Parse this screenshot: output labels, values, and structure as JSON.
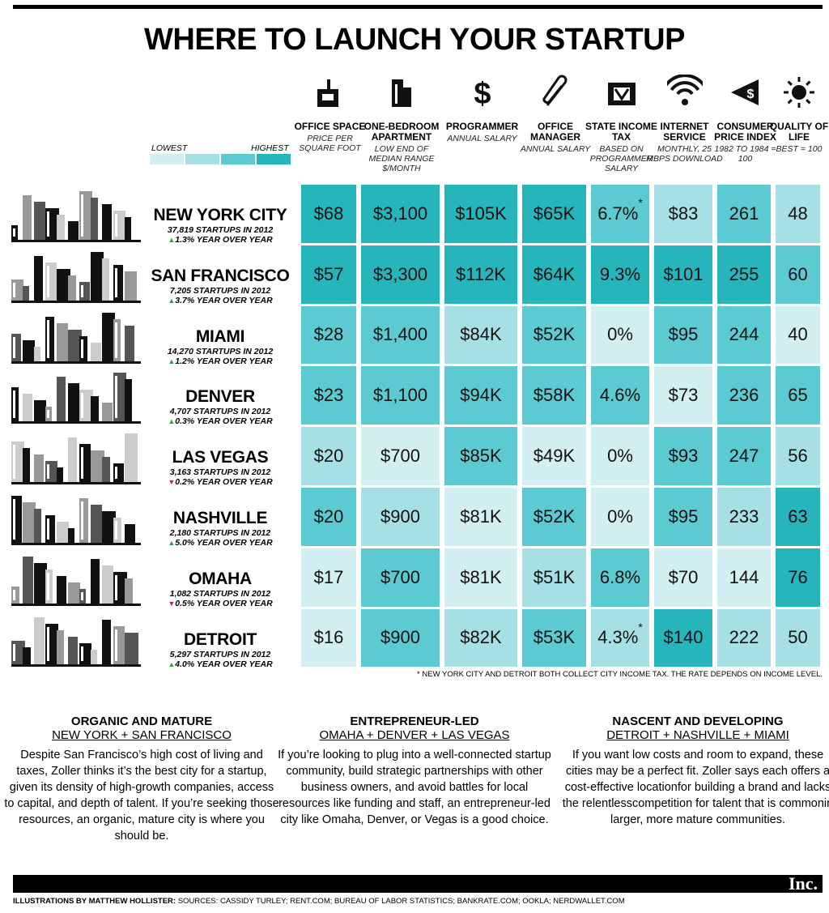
{
  "title": "WHERE TO LAUNCH YOUR STARTUP",
  "legend": {
    "low": "LOWEST",
    "high": "HIGHEST",
    "colors": [
      "#d4eff1",
      "#a6e0e4",
      "#5ccbd1",
      "#27b5bc"
    ]
  },
  "columns": [
    {
      "name": "OFFICE SPACE",
      "sub": "PRICE PER SQUARE FOOT"
    },
    {
      "name": "ONE-BEDROOM APARTMENT",
      "sub": "LOW END OF MEDIAN RANGE $/MONTH"
    },
    {
      "name": "PROGRAMMER",
      "sub": "ANNUAL SALARY"
    },
    {
      "name": "OFFICE MANAGER",
      "sub": "ANNUAL SALARY"
    },
    {
      "name": "STATE INCOME TAX",
      "sub": "BASED ON PROGRAMMER SALARY"
    },
    {
      "name": "INTERNET SERVICE",
      "sub": "MONTHLY, 25 MBPS DOWNLOAD"
    },
    {
      "name": "CONSUMER PRICE INDEX",
      "sub": "1982 TO 1984 = 100"
    },
    {
      "name": "QUALITY OF LIFE",
      "sub": "BEST = 100"
    }
  ],
  "rows": [
    {
      "city": "NEW YORK CITY",
      "startups": "37,819 STARTUPS IN 2012",
      "trend": "up",
      "change": "1.3% YEAR OVER YEAR",
      "cells": [
        {
          "text": "$68",
          "color": "#27b5bc"
        },
        {
          "text": "$3,100",
          "color": "#27b5bc"
        },
        {
          "text": "$105K",
          "color": "#27b5bc"
        },
        {
          "text": "$65K",
          "color": "#27b5bc"
        },
        {
          "text": "6.7%",
          "mark": "*",
          "color": "#5ccbd1"
        },
        {
          "text": "$83",
          "color": "#a6e0e4"
        },
        {
          "text": "261",
          "color": "#5ccbd1"
        },
        {
          "text": "48",
          "color": "#a6e0e4"
        }
      ]
    },
    {
      "city": "SAN FRANCISCO",
      "startups": "7,205 STARTUPS IN 2012",
      "trend": "up",
      "change": "3.7% YEAR OVER YEAR",
      "cells": [
        {
          "text": "$57",
          "color": "#27b5bc"
        },
        {
          "text": "$3,300",
          "color": "#27b5bc"
        },
        {
          "text": "$112K",
          "color": "#27b5bc"
        },
        {
          "text": "$64K",
          "color": "#27b5bc"
        },
        {
          "text": "9.3%",
          "color": "#27b5bc"
        },
        {
          "text": "$101",
          "color": "#27b5bc"
        },
        {
          "text": "255",
          "color": "#27b5bc"
        },
        {
          "text": "60",
          "color": "#5ccbd1"
        }
      ]
    },
    {
      "city": "MIAMI",
      "startups": "14,270 STARTUPS IN 2012",
      "trend": "up",
      "change": "1.2% YEAR OVER YEAR",
      "cells": [
        {
          "text": "$28",
          "color": "#5ccbd1"
        },
        {
          "text": "$1,400",
          "color": "#5ccbd1"
        },
        {
          "text": "$84K",
          "color": "#a6e0e4"
        },
        {
          "text": "$52K",
          "color": "#5ccbd1"
        },
        {
          "text": "0%",
          "color": "#d4eff1"
        },
        {
          "text": "$95",
          "color": "#5ccbd1"
        },
        {
          "text": "244",
          "color": "#5ccbd1"
        },
        {
          "text": "40",
          "color": "#d4eff1"
        }
      ]
    },
    {
      "city": "DENVER",
      "startups": "4,707 STARTUPS IN 2012",
      "trend": "up",
      "change": "0.3% YEAR OVER YEAR",
      "cells": [
        {
          "text": "$23",
          "color": "#5ccbd1"
        },
        {
          "text": "$1,100",
          "color": "#5ccbd1"
        },
        {
          "text": "$94K",
          "color": "#5ccbd1"
        },
        {
          "text": "$58K",
          "color": "#5ccbd1"
        },
        {
          "text": "4.6%",
          "color": "#5ccbd1"
        },
        {
          "text": "$73",
          "color": "#d4eff1"
        },
        {
          "text": "236",
          "color": "#5ccbd1"
        },
        {
          "text": "65",
          "color": "#5ccbd1"
        }
      ]
    },
    {
      "city": "LAS VEGAS",
      "startups": "3,163 STARTUPS IN 2012",
      "trend": "down",
      "change": "0.2% YEAR OVER YEAR",
      "cells": [
        {
          "text": "$20",
          "color": "#a6e0e4"
        },
        {
          "text": "$700",
          "color": "#d4eff1"
        },
        {
          "text": "$85K",
          "color": "#5ccbd1"
        },
        {
          "text": "$49K",
          "color": "#d4eff1"
        },
        {
          "text": "0%",
          "color": "#d4eff1"
        },
        {
          "text": "$93",
          "color": "#5ccbd1"
        },
        {
          "text": "247",
          "color": "#5ccbd1"
        },
        {
          "text": "56",
          "color": "#a6e0e4"
        }
      ]
    },
    {
      "city": "NASHVILLE",
      "startups": "2,180 STARTUPS IN 2012",
      "trend": "up",
      "change": "5.0% YEAR OVER YEAR",
      "cells": [
        {
          "text": "$20",
          "color": "#5ccbd1"
        },
        {
          "text": "$900",
          "color": "#a6e0e4"
        },
        {
          "text": "$81K",
          "color": "#d4eff1"
        },
        {
          "text": "$52K",
          "color": "#5ccbd1"
        },
        {
          "text": "0%",
          "color": "#d4eff1"
        },
        {
          "text": "$95",
          "color": "#5ccbd1"
        },
        {
          "text": "233",
          "color": "#a6e0e4"
        },
        {
          "text": "63",
          "color": "#27b5bc"
        }
      ]
    },
    {
      "city": "OMAHA",
      "startups": "1,082 STARTUPS IN 2012",
      "trend": "down",
      "change": "0.5% YEAR OVER YEAR",
      "cells": [
        {
          "text": "$17",
          "color": "#d4eff1"
        },
        {
          "text": "$700",
          "color": "#5ccbd1"
        },
        {
          "text": "$81K",
          "color": "#d4eff1"
        },
        {
          "text": "$51K",
          "color": "#a6e0e4"
        },
        {
          "text": "6.8%",
          "color": "#5ccbd1"
        },
        {
          "text": "$70",
          "color": "#d4eff1"
        },
        {
          "text": "144",
          "color": "#d4eff1"
        },
        {
          "text": "76",
          "color": "#27b5bc"
        }
      ]
    },
    {
      "city": "DETROIT",
      "startups": "5,297 STARTUPS IN 2012",
      "trend": "up",
      "change": "4.0% YEAR OVER YEAR",
      "cells": [
        {
          "text": "$16",
          "color": "#d4eff1"
        },
        {
          "text": "$900",
          "color": "#5ccbd1"
        },
        {
          "text": "$82K",
          "color": "#a6e0e4"
        },
        {
          "text": "$53K",
          "color": "#5ccbd1"
        },
        {
          "text": "4.3%",
          "mark": "*",
          "color": "#a6e0e4"
        },
        {
          "text": "$140",
          "color": "#27b5bc"
        },
        {
          "text": "222",
          "color": "#a6e0e4"
        },
        {
          "text": "50",
          "color": "#a6e0e4"
        }
      ]
    }
  ],
  "footnote": "* NEW YORK CITY AND DETROIT BOTH COLLECT CITY INCOME TAX. THE RATE DEPENDS ON INCOME LEVEL.",
  "sections": [
    {
      "heading": "ORGANIC AND MATURE",
      "cities": "NEW YORK + SAN FRANCISCO",
      "body": "Despite San Francisco’s high cost of living and taxes, Zoller thinks it’s the best city for a startup, given its density of high-growth companies, access to capital, and depth of talent. If you’re seeking those resources, an organic, mature city is where you should be."
    },
    {
      "heading": "ENTREPRENEUR-LED",
      "cities": "OMAHA + DENVER + LAS VEGAS",
      "body": "If you’re looking to plug into a well-connected startup community, build strategic partnerships with other business owners, and avoid battles for local resources like funding and staff, an entrepreneur-led city like Omaha, Denver, or Vegas is a good choice."
    },
    {
      "heading": "NASCENT AND DEVELOPING",
      "cities": "DETROIT + NASHVILLE + MIAMI",
      "body": "If you want low costs and room to expand, these cities may be a perfect fit. Zoller says each offers a cost-effective locationfor building a brand and lacks the relentlesscompetition for talent that is commonin larger, more mature communities."
    }
  ],
  "logo": "Inc.",
  "credits": {
    "illustrator": "ILLUSTRATIONS BY MATTHEW HOLLISTER:",
    "sources": "SOURCES: CASSIDY TURLEY; RENT.COM; BUREAU OF LABOR STATISTICS; BANKRATE.COM; OOKLA; NERDWALLET.COM"
  }
}
